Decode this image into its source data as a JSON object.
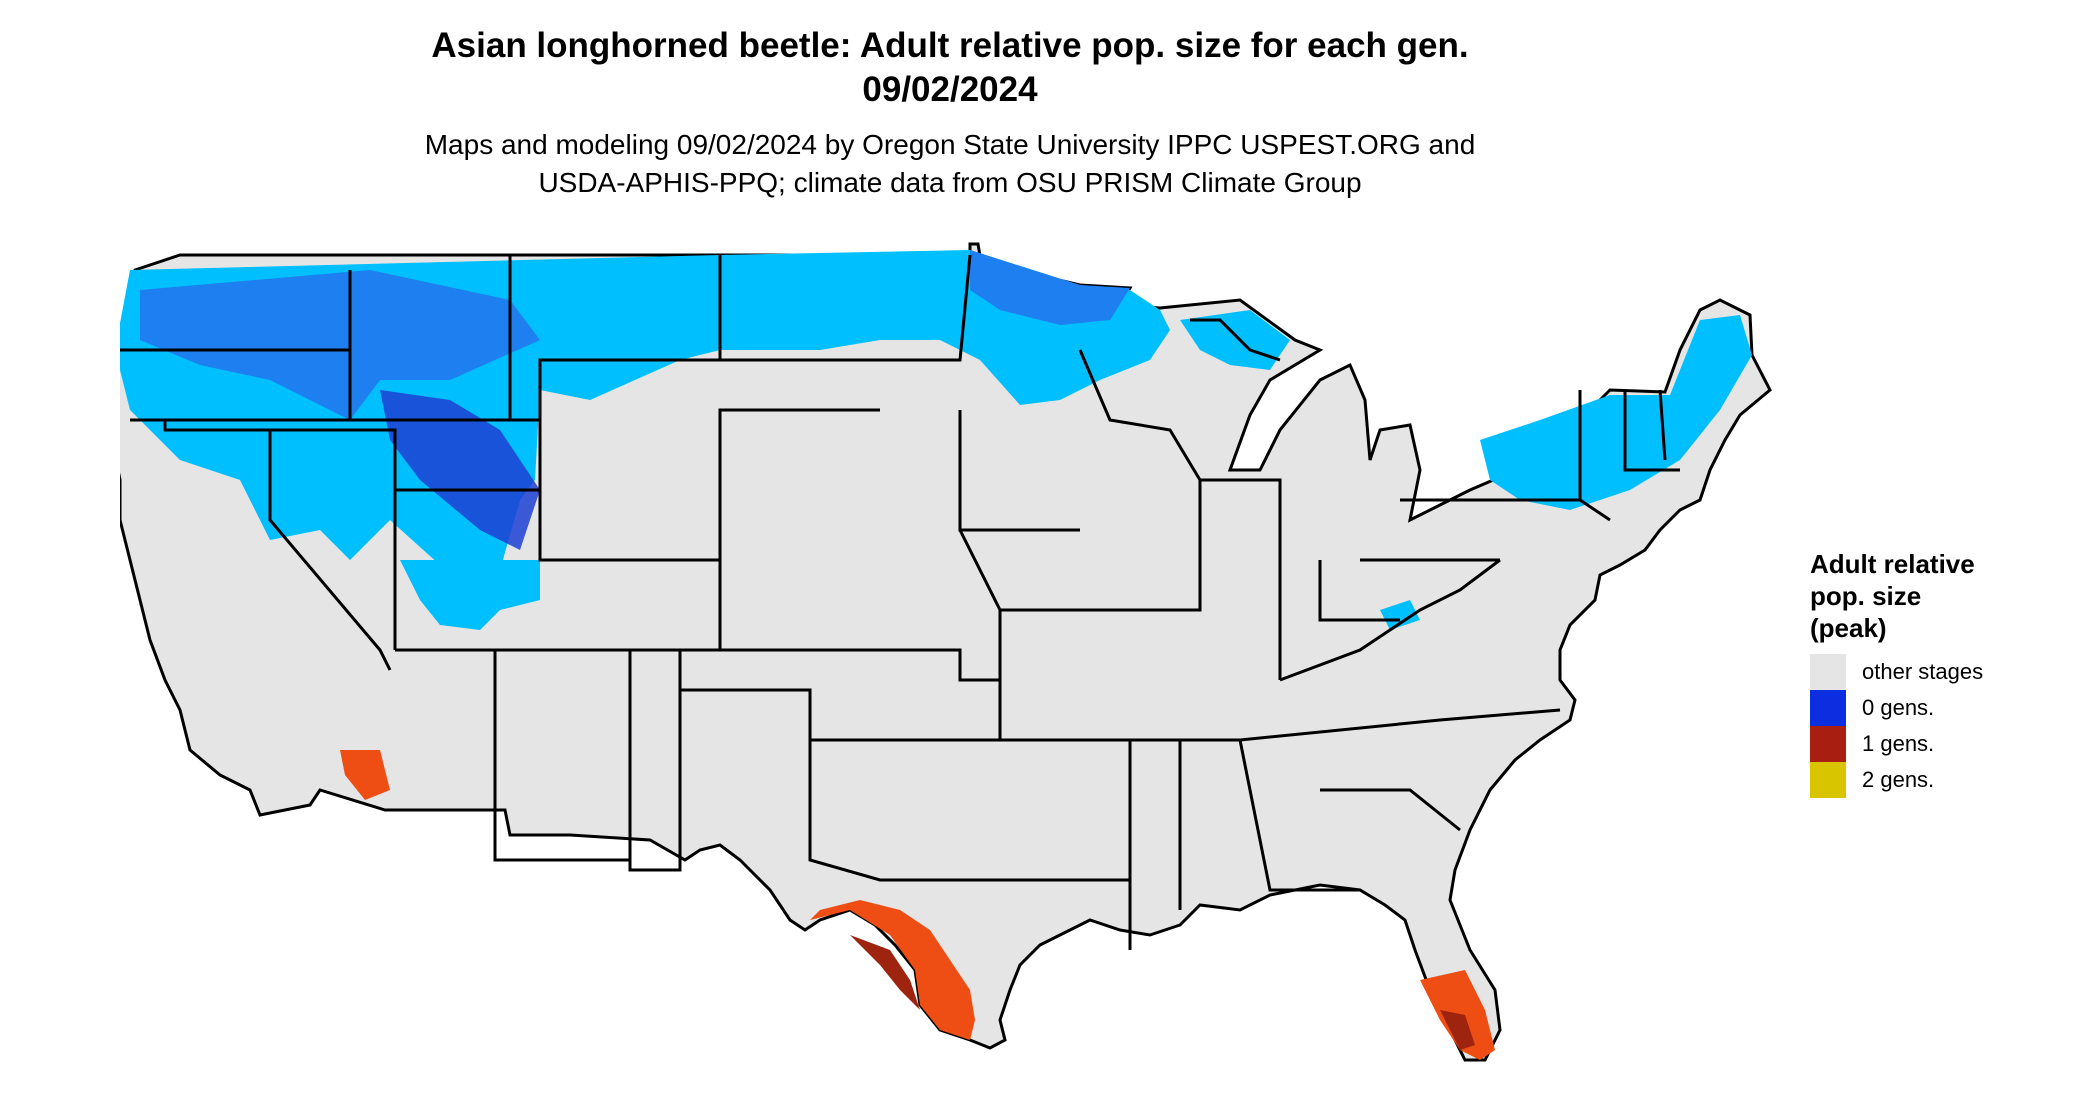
{
  "title_line1": "Asian longhorned beetle: Adult relative pop. size for each gen.",
  "title_line2": "09/02/2024",
  "subtitle_line1": "Maps and modeling 09/02/2024 by Oregon State University IPPC USPEST.ORG and",
  "subtitle_line2": "USDA-APHIS-PPQ; climate data from OSU PRISM Climate Group",
  "legend": {
    "title_line1": "Adult relative",
    "title_line2": "pop. size",
    "title_line3": "(peak)",
    "items": [
      {
        "label": "other stages",
        "color": "#e5e5e5"
      },
      {
        "label": "0 gens.",
        "color": "#0a2ee0"
      },
      {
        "label": "1 gens.",
        "color": "#a81f12"
      },
      {
        "label": "2 gens.",
        "color": "#d9c400"
      }
    ]
  },
  "map_colors": {
    "background_land": "#e5e5e5",
    "light_blue": "#00bfff",
    "mid_blue": "#1e7ff0",
    "dark_blue": "#1d3fd4",
    "orange_red": "#ee4d14",
    "dark_red": "#9e2410",
    "state_border": "#000000"
  }
}
